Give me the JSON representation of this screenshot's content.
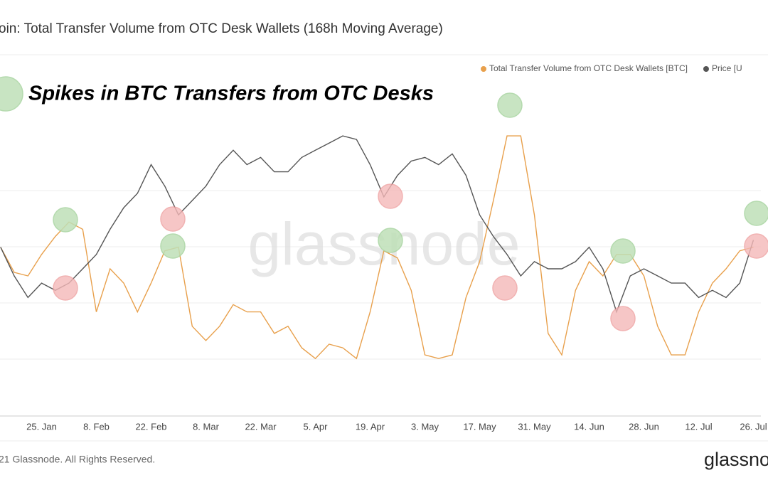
{
  "title": "oin: Total Transfer Volume from OTC Desk Wallets (168h Moving Average)",
  "annotation": "Spikes in BTC Transfers from OTC Desks",
  "watermark": "glassnode",
  "footer": "21 Glassnode. All Rights Reserved.",
  "logo": "glassno",
  "chart_data": {
    "type": "line",
    "categories": [
      null,
      null,
      null,
      "25. Jan",
      null,
      null,
      null,
      "8. Feb",
      null,
      null,
      null,
      "22. Feb",
      null,
      null,
      null,
      "8. Mar",
      null,
      null,
      null,
      "22. Mar",
      null,
      null,
      null,
      "5. Apr",
      null,
      null,
      null,
      "19. Apr",
      null,
      null,
      null,
      "3. May",
      null,
      null,
      null,
      "17. May",
      null,
      null,
      null,
      "31. May",
      null,
      null,
      null,
      "14. Jun",
      null,
      null,
      null,
      "28. Jun",
      null,
      null,
      null,
      "12. Jul",
      null,
      null,
      null,
      "26. Jul"
    ],
    "ylim": [
      0,
      100
    ],
    "series": [
      {
        "name": "Total Transfer Volume from OTC Desk Wallets [BTC]",
        "color": "#e8a04c",
        "values": [
          47,
          40,
          39,
          45,
          50,
          54,
          52,
          29,
          41,
          37,
          29,
          37,
          46,
          47,
          25,
          21,
          25,
          31,
          29,
          29,
          23,
          25,
          19,
          16,
          20,
          19,
          16,
          29,
          46,
          44,
          35,
          17,
          16,
          17,
          33,
          43,
          60,
          78,
          78,
          56,
          23,
          17,
          35,
          43,
          39,
          45,
          45,
          39,
          25,
          17,
          17,
          29,
          37,
          41,
          46,
          47
        ]
      },
      {
        "name": "Price [U",
        "color": "#555555",
        "values": [
          47,
          39,
          33,
          37,
          35,
          37,
          41,
          45,
          52,
          58,
          62,
          70,
          64,
          56,
          60,
          64,
          70,
          74,
          70,
          72,
          68,
          68,
          72,
          74,
          76,
          78,
          77,
          70,
          61,
          67,
          71,
          72,
          70,
          73,
          67,
          56,
          50,
          45,
          39,
          43,
          41,
          41,
          43,
          47,
          41,
          29,
          39,
          41,
          39,
          37,
          37,
          33,
          35,
          33,
          37,
          49
        ]
      }
    ]
  }
}
